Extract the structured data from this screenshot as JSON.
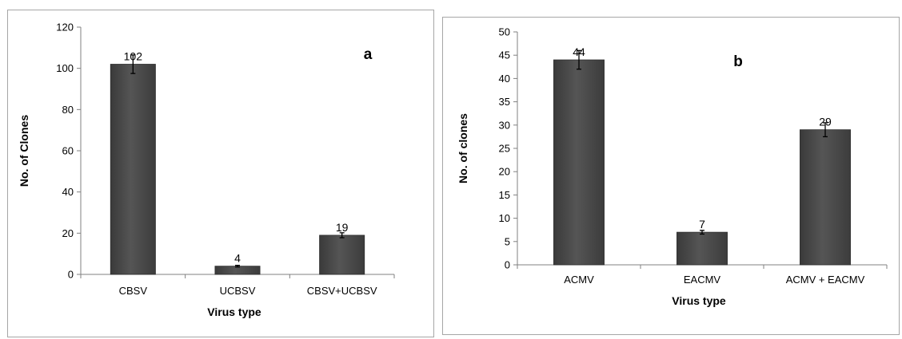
{
  "chart_data": [
    {
      "type": "bar",
      "panel_label": "a",
      "categories": [
        "CBSV",
        "UCBSV",
        "CBSV+UCBSV"
      ],
      "values": [
        102,
        4,
        19
      ],
      "errors": [
        4.5,
        0.4,
        1.2
      ],
      "data_labels": [
        "102",
        "4",
        "19"
      ],
      "xlabel": "Virus type",
      "ylabel": "No. of Clones",
      "ylim": [
        0,
        120
      ],
      "ytick_step": 20,
      "yticks": [
        "0",
        "20",
        "40",
        "60",
        "80",
        "100",
        "120"
      ],
      "grid": false,
      "legend": "none",
      "bar_color": "#555555"
    },
    {
      "type": "bar",
      "panel_label": "b",
      "categories": [
        "ACMV",
        "EACMV",
        "ACMV + EACMV"
      ],
      "values": [
        44,
        7,
        29
      ],
      "errors": [
        2.0,
        0.4,
        1.5
      ],
      "data_labels": [
        "44",
        "7",
        "29"
      ],
      "xlabel": "Virus type",
      "ylabel": "No. of clones",
      "ylim": [
        0,
        50
      ],
      "ytick_step": 5,
      "yticks": [
        "0",
        "5",
        "10",
        "15",
        "20",
        "25",
        "30",
        "35",
        "40",
        "45",
        "50"
      ],
      "grid": false,
      "legend": "none",
      "bar_color": "#555555"
    }
  ]
}
